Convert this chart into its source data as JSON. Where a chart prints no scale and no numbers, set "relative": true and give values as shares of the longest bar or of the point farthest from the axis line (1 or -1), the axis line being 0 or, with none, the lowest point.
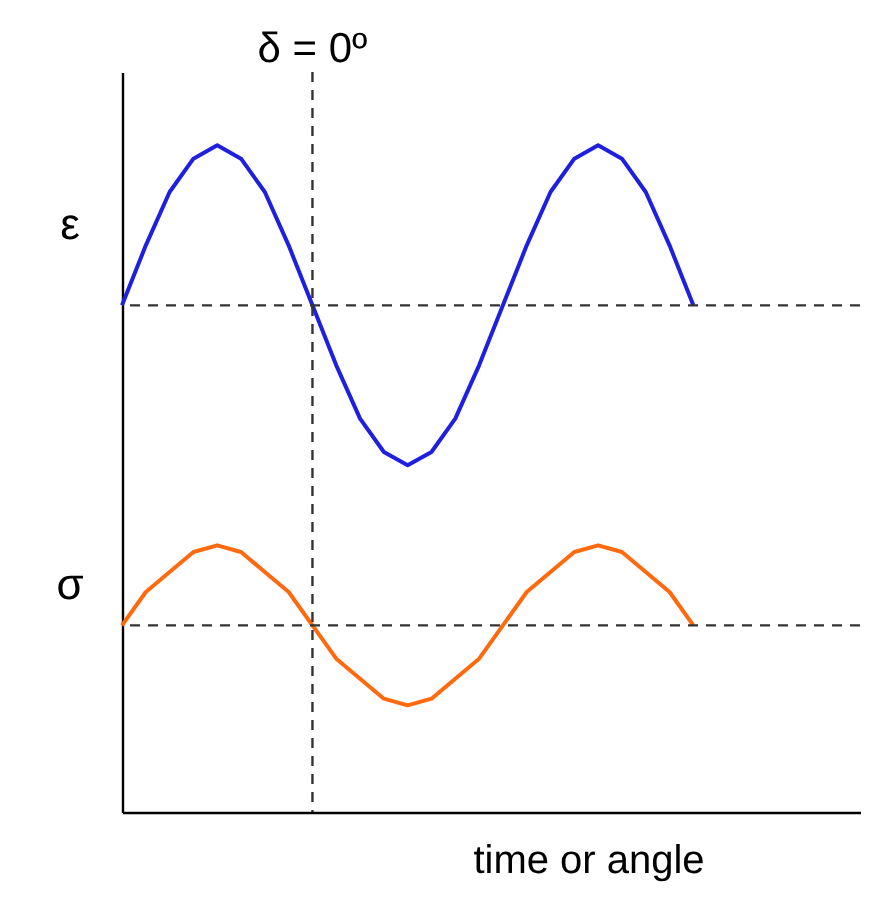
{
  "chart_data": {
    "type": "line",
    "relative": true,
    "xlabel": "time or angle",
    "marker": "none",
    "line_style": "solid",
    "categories": [
      null,
      null,
      null,
      null,
      null,
      null,
      null,
      null,
      null,
      null,
      null,
      null,
      null,
      null,
      null,
      null,
      null,
      null,
      null,
      null,
      null,
      null,
      null,
      null,
      null,
      null,
      null,
      null,
      null,
      null,
      null,
      null
    ],
    "series": [
      {
        "name": "ε",
        "color": "#1f1fe0",
        "values": [
          0.76,
          0.85,
          0.93,
          0.98,
          1.0,
          0.98,
          0.93,
          0.85,
          0.76,
          0.67,
          0.59,
          0.54,
          0.52,
          0.54,
          0.59,
          0.67,
          0.76,
          0.85,
          0.93,
          0.98,
          1.0,
          0.98,
          0.93,
          0.85,
          0.76,
          null,
          null,
          null,
          null,
          null,
          null,
          null
        ]
      },
      {
        "name": "σ",
        "color": "#ff6a0f",
        "values": [
          0.28,
          0.33,
          0.36,
          0.39,
          0.4,
          0.39,
          0.36,
          0.33,
          0.28,
          0.23,
          0.2,
          0.17,
          0.16,
          0.17,
          0.2,
          0.23,
          0.28,
          0.33,
          0.36,
          0.39,
          0.4,
          0.39,
          0.36,
          0.33,
          0.28,
          null,
          null,
          null,
          null,
          null,
          null,
          null
        ]
      }
    ],
    "ref_lines": [
      {
        "axis": "y",
        "value": 0.76,
        "line_style": "dashed",
        "color": "#333333"
      },
      {
        "axis": "y",
        "value": 0.28,
        "line_style": "dashed",
        "color": "#333333"
      }
    ],
    "annotations": [
      "δ = 0º"
    ]
  }
}
